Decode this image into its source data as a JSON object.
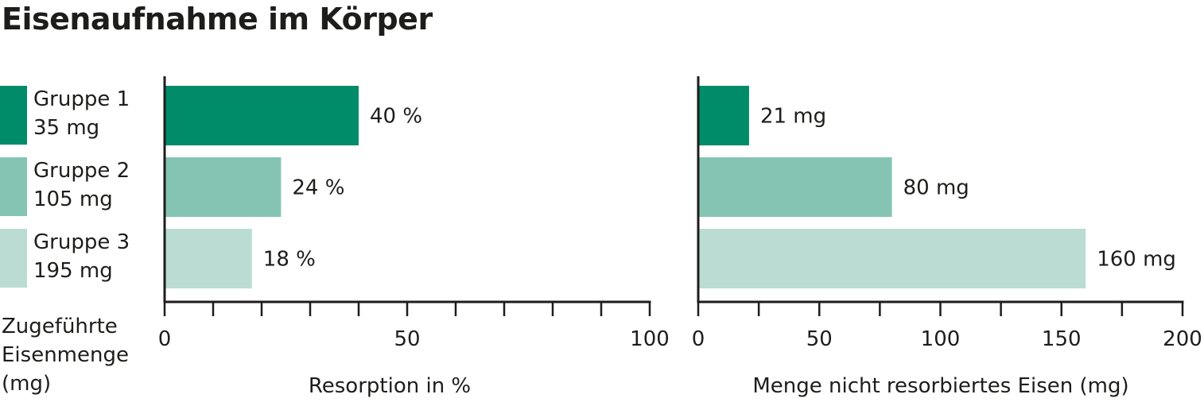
{
  "title": "Eisenaufnahme im Körper",
  "legend": {
    "items": [
      {
        "name": "Gruppe 1",
        "dose": "35 mg",
        "color": "#008c69"
      },
      {
        "name": "Gruppe 2",
        "dose": "105 mg",
        "color": "#85c4b3"
      },
      {
        "name": "Gruppe 3",
        "dose": "195 mg",
        "color": "#badcd3"
      }
    ],
    "caption": [
      "Zugeführte",
      "Eisenmenge",
      "(mg)"
    ]
  },
  "chart_data": [
    {
      "type": "bar",
      "orientation": "horizontal",
      "categories": [
        "Gruppe 1",
        "Gruppe 2",
        "Gruppe 3"
      ],
      "values": [
        40,
        24,
        18
      ],
      "value_labels": [
        "40 %",
        "24 %",
        "18 %"
      ],
      "xlabel": "Resorption in %",
      "xlim": [
        0,
        100
      ],
      "major_ticks": [
        0,
        50,
        100
      ],
      "minor_tick_step": 10,
      "grid": false,
      "colors": [
        "#008c69",
        "#85c4b3",
        "#badcd3"
      ]
    },
    {
      "type": "bar",
      "orientation": "horizontal",
      "categories": [
        "Gruppe 1",
        "Gruppe 2",
        "Gruppe 3"
      ],
      "values": [
        21,
        80,
        160
      ],
      "value_labels": [
        "21 mg",
        "80 mg",
        "160 mg"
      ],
      "xlabel": "Menge nicht resorbiertes Eisen (mg)",
      "xlim": [
        0,
        200
      ],
      "major_ticks": [
        0,
        50,
        100,
        150,
        200
      ],
      "minor_tick_step": 25,
      "grid": false,
      "colors": [
        "#008c69",
        "#85c4b3",
        "#badcd3"
      ]
    }
  ]
}
